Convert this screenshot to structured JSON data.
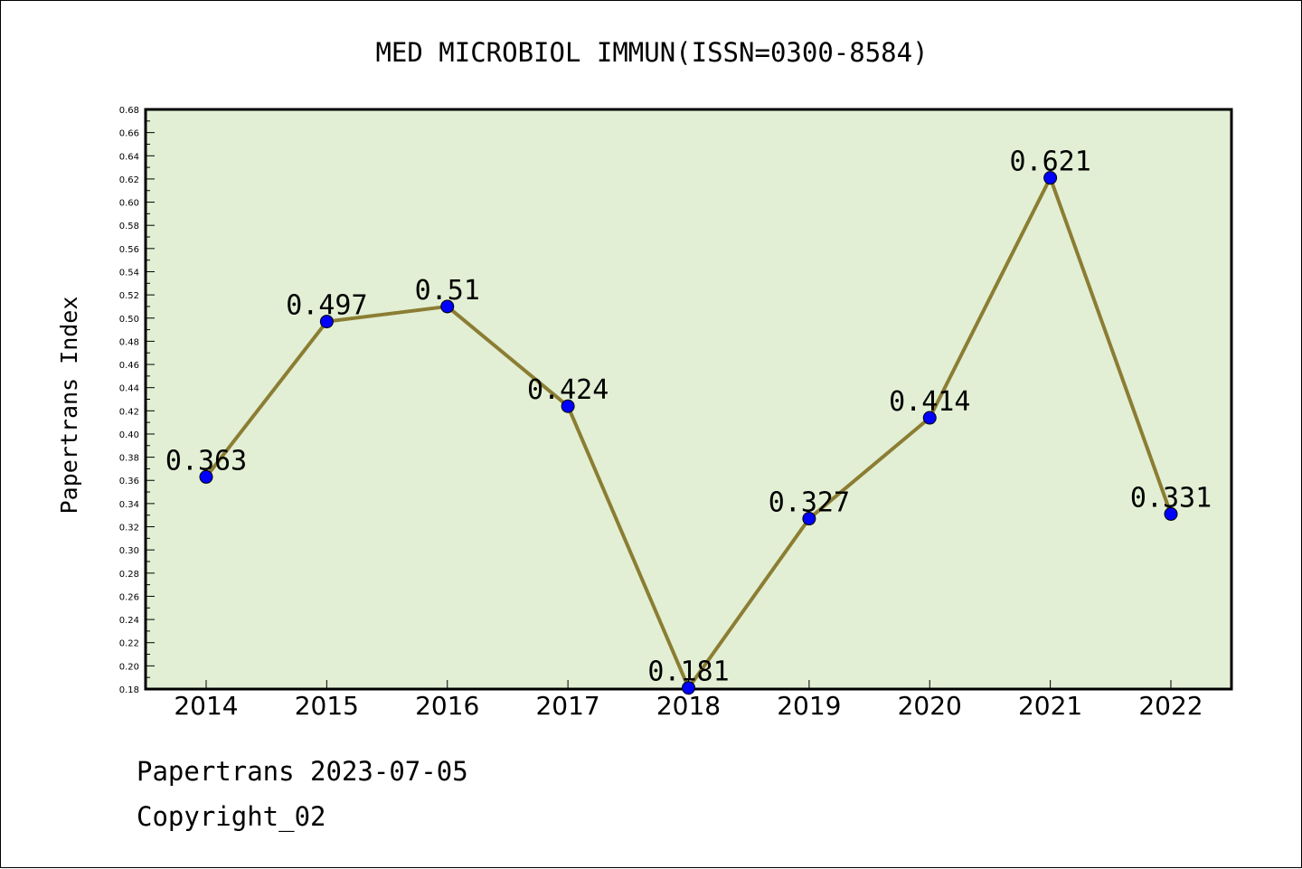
{
  "chart_data": {
    "type": "line",
    "title": "MED MICROBIOL IMMUN(ISSN=0300-8584)",
    "xlabel": "",
    "ylabel": "Papertrans Index",
    "categories": [
      "2014",
      "2015",
      "2016",
      "2017",
      "2018",
      "2019",
      "2020",
      "2021",
      "2022"
    ],
    "values": [
      0.363,
      0.497,
      0.51,
      0.424,
      0.181,
      0.327,
      0.414,
      0.621,
      0.331
    ],
    "data_labels": [
      "0.363",
      "0.497",
      "0.51",
      "0.424",
      "0.181",
      "0.327",
      "0.414",
      "0.621",
      "0.331"
    ],
    "ylim": [
      0.18,
      0.68
    ],
    "ytick_step": 0.02,
    "grid": false,
    "legend": "none",
    "colors": {
      "plot_background": "#e2efd4",
      "line": "#8b7d33",
      "marker": "#0000ff",
      "axes": "#000000"
    }
  },
  "footer": {
    "source": "Papertrans 2023-07-05",
    "copyright": "Copyright_02"
  }
}
